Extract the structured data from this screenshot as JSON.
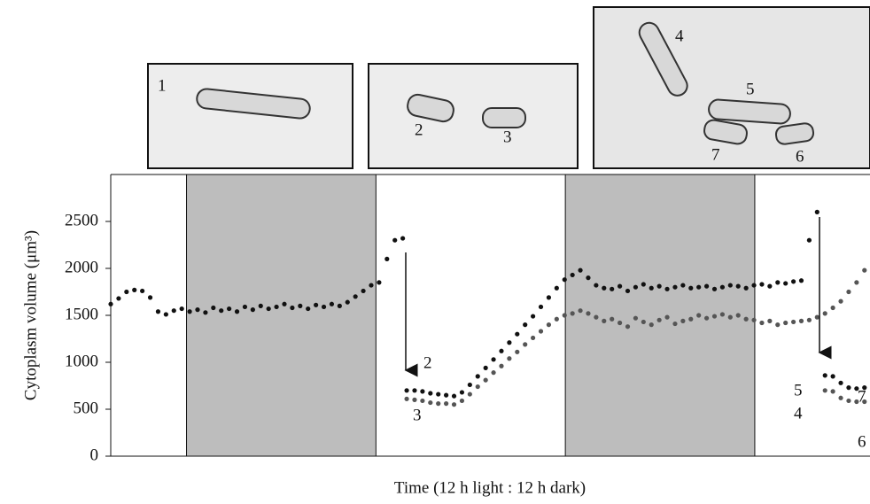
{
  "chart_data": {
    "type": "scatter",
    "x_label": "Time (12 h light : 12 h dark)",
    "y_label": "Cytoplasm volume (μm³)",
    "xlim": [
      0,
      48.1
    ],
    "ylim": [
      0,
      3000
    ],
    "yticks": [
      0,
      500,
      1000,
      1500,
      2000,
      2500
    ],
    "dark_periods": [
      [
        4.8,
        16.8
      ],
      [
        28.8,
        40.8
      ]
    ],
    "series": [
      {
        "color": "#111111",
        "x": [
          0,
          0.5,
          1,
          1.5,
          2,
          2.5,
          3,
          3.5,
          4,
          4.5,
          5,
          5.5,
          6,
          6.5,
          7,
          7.5,
          8,
          8.5,
          9,
          9.5,
          10,
          10.5,
          11,
          11.5,
          12,
          12.5,
          13,
          13.5,
          14,
          14.5,
          15,
          15.5,
          16,
          16.5,
          17,
          17.5,
          18,
          18.5
        ],
        "values": [
          1620,
          1680,
          1750,
          1770,
          1760,
          1690,
          1540,
          1510,
          1550,
          1570,
          1540,
          1560,
          1530,
          1580,
          1550,
          1570,
          1540,
          1590,
          1560,
          1600,
          1570,
          1590,
          1620,
          1580,
          1600,
          1570,
          1610,
          1590,
          1620,
          1600,
          1640,
          1700,
          1760,
          1820,
          1850,
          2100,
          2300,
          2320
        ]
      },
      {
        "color": "#111111",
        "x": [
          18.75,
          19.25,
          19.75,
          20.25,
          20.75,
          21.25,
          21.75,
          22.25,
          22.75,
          23.25,
          23.75,
          24.25,
          24.75,
          25.25,
          25.75,
          26.25,
          26.75,
          27.25,
          27.75,
          28.25,
          28.75,
          29.25,
          29.75,
          30.25,
          30.75,
          31.25,
          31.75,
          32.25,
          32.75,
          33.25,
          33.75,
          34.25,
          34.75,
          35.25,
          35.75,
          36.25,
          36.75,
          37.25,
          37.75,
          38.25,
          38.75,
          39.25,
          39.75,
          40.25,
          40.75,
          41.25,
          41.75,
          42.25,
          42.75,
          43.25,
          43.75,
          44.25,
          44.75
        ],
        "values": [
          700,
          700,
          690,
          670,
          660,
          650,
          640,
          680,
          760,
          850,
          940,
          1030,
          1120,
          1210,
          1300,
          1400,
          1490,
          1590,
          1690,
          1790,
          1880,
          1930,
          1980,
          1900,
          1820,
          1790,
          1780,
          1810,
          1760,
          1800,
          1830,
          1790,
          1810,
          1780,
          1800,
          1820,
          1790,
          1800,
          1810,
          1780,
          1800,
          1820,
          1810,
          1790,
          1820,
          1830,
          1810,
          1850,
          1840,
          1860,
          1870,
          2300,
          2600
        ]
      },
      {
        "color": "#555555",
        "x": [
          18.75,
          19.25,
          19.75,
          20.25,
          20.75,
          21.25,
          21.75,
          22.25,
          22.75,
          23.25,
          23.75,
          24.25,
          24.75,
          25.25,
          25.75,
          26.25,
          26.75,
          27.25,
          27.75,
          28.25,
          28.75,
          29.25,
          29.75,
          30.25,
          30.75,
          31.25,
          31.75,
          32.25,
          32.75,
          33.25,
          33.75,
          34.25,
          34.75,
          35.25,
          35.75,
          36.25,
          36.75,
          37.25,
          37.75,
          38.25,
          38.75,
          39.25,
          39.75,
          40.25,
          40.75,
          41.25,
          41.75,
          42.25,
          42.75,
          43.25,
          43.75,
          44.25,
          44.75,
          45.25,
          45.75,
          46.25,
          46.75,
          47.25,
          47.75
        ],
        "values": [
          610,
          600,
          590,
          570,
          560,
          560,
          550,
          590,
          660,
          740,
          810,
          890,
          960,
          1040,
          1110,
          1190,
          1260,
          1330,
          1400,
          1460,
          1500,
          1520,
          1550,
          1520,
          1480,
          1440,
          1460,
          1420,
          1380,
          1470,
          1430,
          1400,
          1450,
          1480,
          1410,
          1440,
          1460,
          1500,
          1470,
          1490,
          1510,
          1480,
          1500,
          1460,
          1450,
          1420,
          1440,
          1400,
          1420,
          1430,
          1440,
          1450,
          1480,
          1520,
          1580,
          1650,
          1750,
          1850,
          1980
        ]
      },
      {
        "color": "#111111",
        "x": [
          45.25,
          45.75,
          46.25,
          46.75,
          47.25,
          47.75
        ],
        "values": [
          860,
          850,
          780,
          730,
          720,
          730
        ]
      },
      {
        "color": "#555555",
        "x": [
          45.25,
          45.75,
          46.25,
          46.75,
          47.25,
          47.75
        ],
        "values": [
          700,
          690,
          620,
          590,
          580,
          580
        ]
      }
    ],
    "annotations": [
      "2",
      "3",
      "5",
      "4",
      "7",
      "6"
    ]
  },
  "panels": [
    {
      "labels": [
        "1"
      ]
    },
    {
      "labels": [
        "2",
        "3"
      ]
    },
    {
      "labels": [
        "4",
        "5",
        "7",
        "6"
      ]
    }
  ]
}
